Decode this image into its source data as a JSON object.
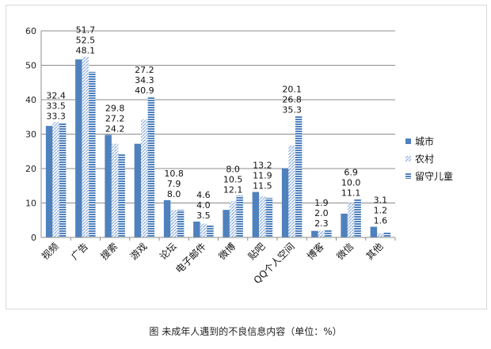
{
  "chart_data": {
    "type": "bar",
    "title": "",
    "caption": "图 未成年人遇到的不良信息内容（单位：%）",
    "xlabel": "",
    "ylabel": "",
    "ylim": [
      0,
      60
    ],
    "yticks": [
      0,
      10,
      20,
      30,
      40,
      50,
      60
    ],
    "grid": true,
    "legend_position": "right",
    "categories": [
      "视频",
      "广告",
      "搜索",
      "游戏",
      "论坛",
      "电子邮件",
      "微博",
      "贴吧",
      "QQ个人空间",
      "博客",
      "微信",
      "其他"
    ],
    "series": [
      {
        "name": "城市",
        "color": "#4f81bd",
        "values": [
          32.4,
          51.7,
          29.8,
          27.2,
          10.8,
          4.6,
          8.0,
          13.2,
          20.1,
          1.9,
          6.9,
          3.1
        ]
      },
      {
        "name": "农村",
        "color": "#9bb7e0",
        "values": [
          33.5,
          52.5,
          27.2,
          34.3,
          7.9,
          4.0,
          10.5,
          11.9,
          26.8,
          2.0,
          10.0,
          1.2
        ]
      },
      {
        "name": "留守儿童",
        "color": "#4f81bd",
        "values": [
          33.3,
          48.1,
          24.2,
          40.9,
          8.0,
          3.5,
          12.1,
          11.5,
          35.3,
          2.3,
          11.1,
          1.6
        ]
      }
    ]
  }
}
